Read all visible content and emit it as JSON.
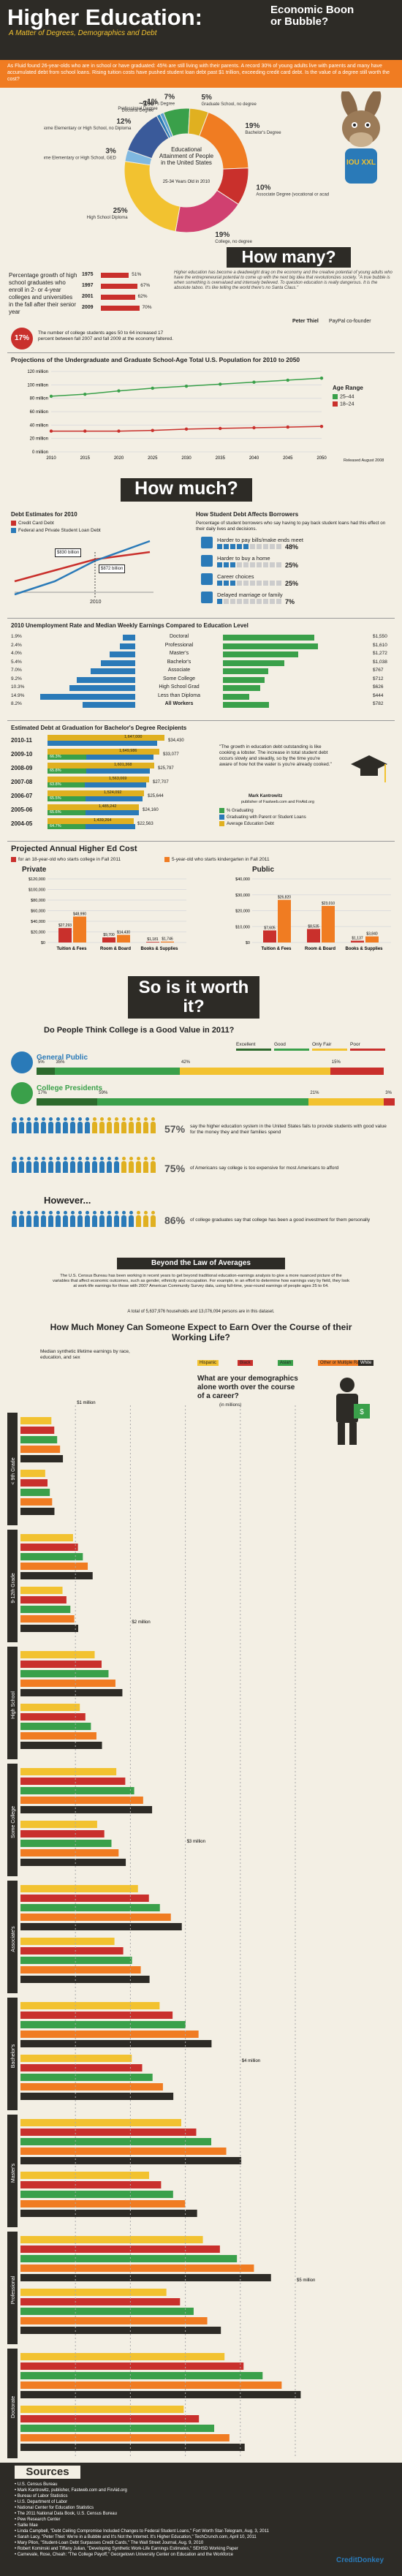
{
  "header": {
    "title": "Higher Education:",
    "subtitle": "Economic Boon or Bubble?",
    "tagline": "A Matter of Degrees, Demographics and Debt",
    "intro": "As Fluid found 26-year-olds who are in school or have graduated: 45% are still living with their parents. A record 30% of young adults live with parents and many have accumulated debt from school loans. Rising tuition costs have pushed student loan debt past $1 trillion, exceeding credit card debt. Is the value of a degree still worth the cost?"
  },
  "donkey": {
    "label": "IOU XXL"
  },
  "attainment": {
    "center_label": "Educational Attainment of People in the United States",
    "center_sub": "25-34 Years Old in 2010",
    "slices": [
      {
        "label": "Doctoral Degree",
        "value": 1,
        "text": "~1%"
      },
      {
        "label": "Professional Degree",
        "value": 1,
        "text": "~1%"
      },
      {
        "label": "Master's Degree",
        "value": 7,
        "text": "7%"
      },
      {
        "label": "Graduate School, no degree",
        "value": 5,
        "text": "5%"
      },
      {
        "label": "Bachelor's Degree",
        "value": 19,
        "text": "19%"
      },
      {
        "label": "Associate Degree (vocational or academic)",
        "value": 10,
        "text": "10%"
      },
      {
        "label": "College, no degree",
        "value": 19,
        "text": "19%"
      },
      {
        "label": "High School Diploma",
        "value": 25,
        "text": "25%"
      },
      {
        "label": "Some Elementary or High School, GED",
        "value": 3,
        "text": "3%"
      },
      {
        "label": "Some Elementary or High School, no Diploma",
        "value": 12,
        "text": "12%"
      }
    ]
  },
  "how_many": {
    "title": "How many?"
  },
  "enrollment": {
    "caption": "Percentage growth of high school graduates who enroll in 2- or 4-year colleges and universities in the fall after their senior year",
    "rows": [
      {
        "year": "1975",
        "pct": "51%",
        "value": 51
      },
      {
        "year": "1997",
        "pct": "67%",
        "value": 67
      },
      {
        "year": "2001",
        "pct": "62%",
        "value": 62
      },
      {
        "year": "2009",
        "pct": "70%",
        "value": 70
      }
    ],
    "quote": "Higher education has become a deadweight drag on the economy and the creative potential of young adults who have the entrepreneurial potential to come up with the next big idea that revolutionizes society. \"A true bubble is when something is overvalued and intensely believed. To question education is really dangerous. It is the absolute taboo. It's like telling the world there's no Santa Claus.\"",
    "quote_author": "Peter Thiel",
    "quote_role": "PayPal co-founder",
    "stat_pct": "17%",
    "stat_text": "The number of college students ages 50 to 64 increased 17 percent between fall 2007 and fall 2009 at the economy faltered."
  },
  "projections": {
    "title": "Projections of the Undergraduate and Graduate School-Age Total U.S. Population for 2010 to 2050",
    "legend_title": "Age Range",
    "released": "Released August 2008"
  },
  "how_much": {
    "title": "How much?"
  },
  "debt": {
    "left_title": "Debt Estimates for 2010",
    "legend": [
      "Credit Card Debt",
      "Federal and Private Student Loan Debt"
    ],
    "credit_value": "$830 billion",
    "student_value": "$872 billion",
    "year": "2010",
    "right_title": "How Student Debt Affects Borrowers",
    "right_sub": "Percentage of student borrowers who say having to pay back student loans had this effect on their daily lives and decisions.",
    "effects": [
      {
        "label": "Harder to pay bills/make ends meet",
        "pct": "48%",
        "value": 48
      },
      {
        "label": "Harder to buy a home",
        "pct": "25%",
        "value": 25
      },
      {
        "label": "Career choices",
        "pct": "25%",
        "value": 25
      },
      {
        "label": "Delayed marriage or family",
        "pct": "7%",
        "value": 7
      }
    ]
  },
  "unemployment": {
    "title": "2010 Unemployment Rate and Median Weekly Earnings Compared to Education Level",
    "rows": [
      {
        "rate": "1.9%",
        "level": "Doctoral",
        "earn": "$1,550",
        "r": 1.9,
        "e": 1550
      },
      {
        "rate": "2.4%",
        "level": "Professional",
        "earn": "$1,610",
        "r": 2.4,
        "e": 1610
      },
      {
        "rate": "4.0%",
        "level": "Master's",
        "earn": "$1,272",
        "r": 4.0,
        "e": 1272
      },
      {
        "rate": "5.4%",
        "level": "Bachelor's",
        "earn": "$1,038",
        "r": 5.4,
        "e": 1038
      },
      {
        "rate": "7.0%",
        "level": "Associate",
        "earn": "$767",
        "r": 7.0,
        "e": 767
      },
      {
        "rate": "9.2%",
        "level": "Some College",
        "earn": "$712",
        "r": 9.2,
        "e": 712
      },
      {
        "rate": "10.3%",
        "level": "High School Grad",
        "earn": "$626",
        "r": 10.3,
        "e": 626
      },
      {
        "rate": "14.9%",
        "level": "Less than Diploma",
        "earn": "$444",
        "r": 14.9,
        "e": 444
      },
      {
        "rate": "8.2%",
        "level": "All Workers",
        "earn": "$782",
        "r": 8.2,
        "e": 782
      }
    ]
  },
  "grad_debt": {
    "title": "Estimated Debt at Graduation for Bachelor's Degree Recipients",
    "quote": "\"The growth in education debt outstanding is like cooking a lobster. The increase in total student debt occurs slowly and steadily, so by the time you're aware of how hot the water is you're already cooked.\"",
    "quote_author": "Mark Kantrowitz",
    "quote_role": "publisher of Fastweb.com and FinAid.org",
    "legend": [
      "% Graduating",
      "Graduating with Parent or Student Loans",
      "Average Education Debt"
    ],
    "rows": [
      {
        "year": "2010-11",
        "a": "",
        "b": "1,647,000",
        "c": "$34,430"
      },
      {
        "year": "2009-10",
        "a": "66.3%",
        "b": "1,649,986",
        "c": "$33,077"
      },
      {
        "year": "2008-09",
        "a": "65.8%",
        "b": "1,601,368",
        "c": "$25,797"
      },
      {
        "year": "2007-08",
        "a": "63.8%",
        "b": "1,563,069",
        "c": "$27,707"
      },
      {
        "year": "2006-07",
        "a": "65.5%",
        "b": "1,524,092",
        "c": "$25,644"
      },
      {
        "year": "2005-06",
        "a": "65.6%",
        "b": "1,485,242",
        "c": "$24,160"
      },
      {
        "year": "2004-05",
        "a": "64.7%",
        "b": "1,439,264",
        "c": "$22,563"
      }
    ]
  },
  "projected": {
    "title": "Projected Annual Higher Ed Cost",
    "sub1": "for an 18-year-old who starts college in Fall 2011",
    "sub2": "5-year-old who starts kindergarten in Fall 2011",
    "private_label": "Private",
    "public_label": "Public",
    "private_bars": [
      {
        "label": "Tuition & Fees",
        "now": "$27,293",
        "later": "$48,990"
      },
      {
        "label": "Room & Board",
        "now": "$9,700",
        "later": "$14,430"
      },
      {
        "label": "Books & Supplies",
        "now": "$1,181",
        "later": "$1,746"
      }
    ],
    "public_bars": [
      {
        "label": "Tuition & Fees",
        "now": "$7,605",
        "later": "$26,820"
      },
      {
        "label": "Room & Board",
        "now": "$8,535",
        "later": "$23,010"
      },
      {
        "label": "Books & Supplies",
        "now": "$1,137",
        "later": "$3,840"
      }
    ]
  },
  "worth": {
    "title": "So is it worth it?"
  },
  "value_q": {
    "title": "Do People Think College is a Good Value in 2011?",
    "legend": [
      "Excellent",
      "Good",
      "Only Fair",
      "Poor"
    ],
    "general_label": "General Public",
    "general_pct": [
      "5%",
      "35%",
      "42%",
      "15%"
    ],
    "presidents_label": "College Presidents",
    "presidents_pct": [
      "17%",
      "59%",
      "21%",
      "3%"
    ],
    "stats": [
      {
        "pct": "57%",
        "text": "say the higher education system in the United States fails to provide students with good value for the money they and their families spend"
      },
      {
        "pct": "75%",
        "text": "of Americans say college is too expensive for most Americans to afford"
      },
      {
        "pct": "86%",
        "text": "of college graduates say that college has been a good investment for them personally"
      }
    ],
    "however": "However..."
  },
  "law": {
    "title": "Beyond the Law of Averages",
    "body": "The U.S. Census Bureau has been working in recent years to get beyond traditional education-earnings analysis to give a more nuanced picture of the variables that affect economic outcomes, such as gender, ethnicity and occupation. For example, in an effort to determine how earnings vary by field, they look at work-life earnings for those with 2007 American Community Survey data, using full-time, year-round earnings of people ages 25 to 64.",
    "foot": "A total of 5,637,976 households and 13,076,094 persons are in this dataset."
  },
  "lifetime": {
    "title": "How Much Money Can Someone Expect to Earn Over the Course of their Working Life?",
    "sub": "Median synthetic lifetime earnings by race, education, and sex",
    "legend": [
      "Hispanic",
      "Black",
      "Asian",
      "Other or Multiple Races",
      "White"
    ],
    "ask": "What are your demographics alone worth over the course of a career?",
    "ask_sub": "(in millions)",
    "levels": [
      "< 9th Grade",
      "9-12th Grade",
      "High School",
      "Some College",
      "Associate's",
      "Bachelor's",
      "Master's",
      "Professional",
      "Doctorate"
    ],
    "axis": [
      "$1 million",
      "$2 million",
      "$3 million",
      "$4 million",
      "$5 million"
    ]
  },
  "sources": {
    "title": "Sources",
    "items": [
      "U.S. Census Bureau",
      "Mark Kantrowitz, publisher, Fastweb.com and FinAid.org",
      "Bureau of Labor Statistics",
      "U.S. Department of Labor",
      "National Center for Education Statistics",
      "The 2011 National Data Book, U.S. Census Bureau",
      "Pew Research Center",
      "Sallie Mae",
      "Linda Campbell, \"Debt Ceiling Compromise Included Changes to Federal Student Loans,\" Fort Worth Star-Telegram, Aug. 3, 2011",
      "Sarah Lacy, \"Peter Thiel: We're in a Bubble and It's Not the Internet. It's Higher Education,\" TechCrunch.com, April 10, 2011",
      "Mary Pilon, \"Student-Loan Debt Surpasses Credit Cards,\" The Wall Street Journal, Aug. 9, 2010",
      "Robert Kominski and Tiffany Julian, \"Developing Synthetic Work-Life Earnings Estimates,\" SEHSD Working Paper",
      "Carnevale, Rose, Cheah: \"The College Payoff,\" Georgetown University Center on Education and the Workforce"
    ],
    "logo": "CreditDonkey"
  },
  "colors": {
    "dark": "#2d2b26",
    "orange": "#f07c22",
    "blue": "#2a7ab8",
    "red": "#c9302c",
    "green": "#3aa04a",
    "yellow": "#f2c230"
  }
}
